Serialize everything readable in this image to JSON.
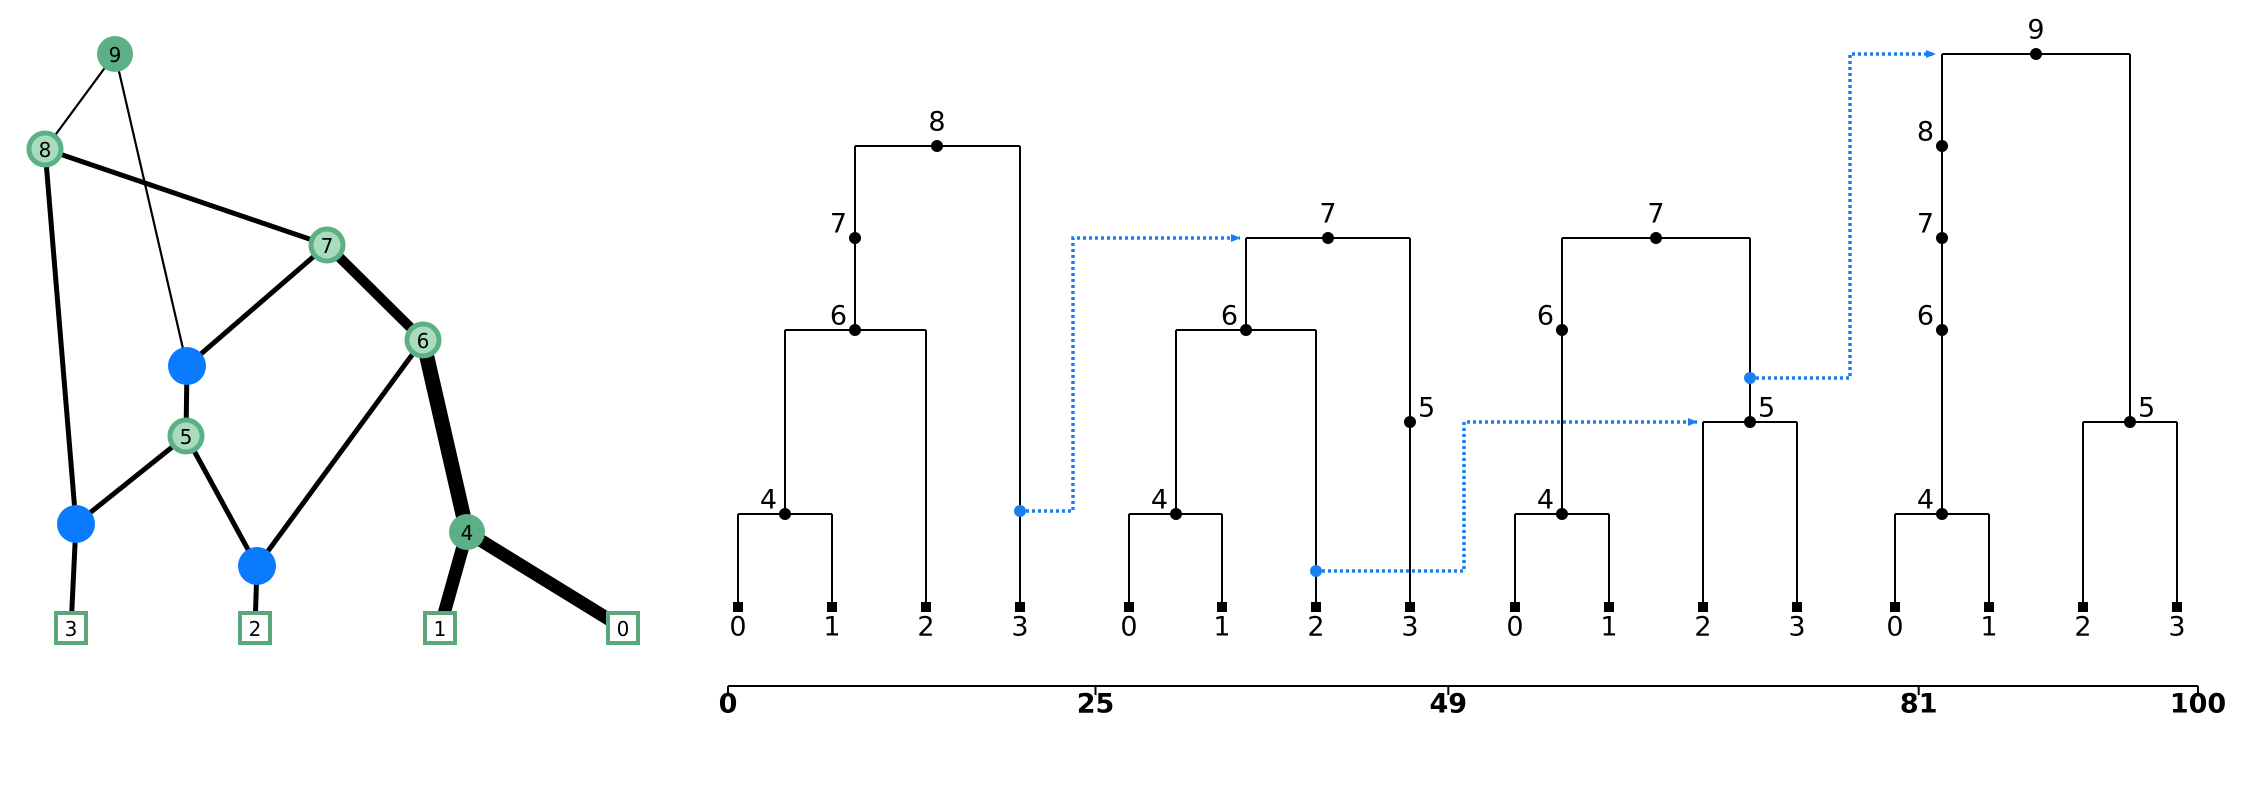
{
  "graph": {
    "nodes": [
      {
        "id": "9",
        "label": "9",
        "kind": "green"
      },
      {
        "id": "8",
        "label": "8",
        "kind": "light"
      },
      {
        "id": "7",
        "label": "7",
        "kind": "light"
      },
      {
        "id": "6",
        "label": "6",
        "kind": "light"
      },
      {
        "id": "5",
        "label": "5",
        "kind": "light"
      },
      {
        "id": "4",
        "label": "4",
        "kind": "green"
      },
      {
        "id": "bA",
        "label": "",
        "kind": "blue"
      },
      {
        "id": "bB",
        "label": "",
        "kind": "blue"
      },
      {
        "id": "bC",
        "label": "",
        "kind": "blue"
      },
      {
        "id": "s3",
        "label": "3",
        "kind": "square"
      },
      {
        "id": "s2",
        "label": "2",
        "kind": "square"
      },
      {
        "id": "s1",
        "label": "1",
        "kind": "square"
      },
      {
        "id": "s0",
        "label": "0",
        "kind": "square"
      }
    ],
    "edges": [
      {
        "from": "9",
        "to": "8",
        "weight": 1
      },
      {
        "from": "9",
        "to": "bA",
        "weight": 1
      },
      {
        "from": "8",
        "to": "7",
        "weight": 2
      },
      {
        "from": "8",
        "to": "bB",
        "weight": 2
      },
      {
        "from": "7",
        "to": "6",
        "weight": 4
      },
      {
        "from": "7",
        "to": "bA",
        "weight": 2
      },
      {
        "from": "6",
        "to": "4",
        "weight": 6
      },
      {
        "from": "6",
        "to": "bC",
        "weight": 2
      },
      {
        "from": "bA",
        "to": "5",
        "weight": 2
      },
      {
        "from": "5",
        "to": "bB",
        "weight": 2
      },
      {
        "from": "5",
        "to": "bC",
        "weight": 2
      },
      {
        "from": "bB",
        "to": "s3",
        "weight": 2
      },
      {
        "from": "bC",
        "to": "s2",
        "weight": 2
      },
      {
        "from": "4",
        "to": "s1",
        "weight": 5
      },
      {
        "from": "4",
        "to": "s0",
        "weight": 5
      }
    ]
  },
  "timeline": {
    "ticks": [
      "0",
      "25",
      "49",
      "81",
      "100"
    ]
  },
  "trees": [
    {
      "leaves": [
        "0",
        "1",
        "2",
        "3"
      ],
      "nodes": [
        {
          "label": "4",
          "level": 4
        },
        {
          "label": "6",
          "level": 6
        },
        {
          "label": "7",
          "level": 7
        },
        {
          "label": "8",
          "level": 8
        }
      ]
    },
    {
      "leaves": [
        "0",
        "1",
        "2",
        "3"
      ],
      "nodes": [
        {
          "label": "4",
          "level": 4
        },
        {
          "label": "6",
          "level": 6
        },
        {
          "label": "5",
          "level": 5
        },
        {
          "label": "7",
          "level": 7
        }
      ]
    },
    {
      "leaves": [
        "0",
        "1",
        "2",
        "3"
      ],
      "nodes": [
        {
          "label": "4",
          "level": 4
        },
        {
          "label": "6",
          "level": 6
        },
        {
          "label": "5",
          "level": 5
        },
        {
          "label": "7",
          "level": 7
        }
      ]
    },
    {
      "leaves": [
        "0",
        "1",
        "2",
        "3"
      ],
      "nodes": [
        {
          "label": "4",
          "level": 4
        },
        {
          "label": "6",
          "level": 6
        },
        {
          "label": "7",
          "level": 7
        },
        {
          "label": "8",
          "level": 8
        },
        {
          "label": "5",
          "level": 5
        },
        {
          "label": "9",
          "level": 9
        }
      ]
    }
  ],
  "colors": {
    "green_node": "#5cb085",
    "light_node_fill": "#a8dcbc",
    "light_node_ring": "#5cb085",
    "blue_node": "#0a7aff",
    "square_stroke": "#5aa87a",
    "tree_line": "#000000",
    "transition": "#1a7ff0"
  }
}
